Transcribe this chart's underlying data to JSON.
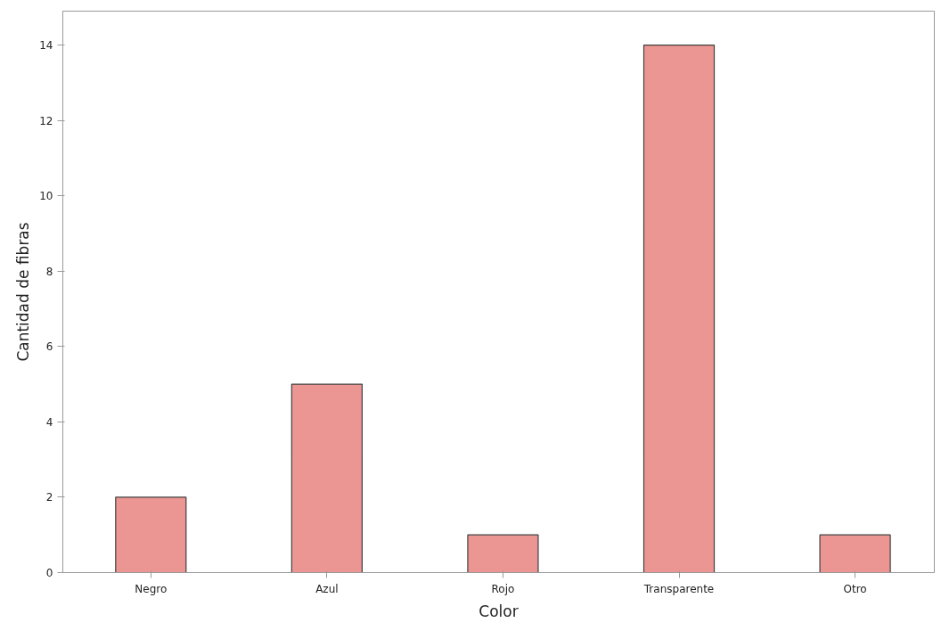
{
  "chart_data": {
    "type": "bar",
    "xlabel": "Color",
    "ylabel": "Cantidad de fibras",
    "categories": [
      "Negro",
      "Azul",
      "Rojo",
      "Transparente",
      "Otro"
    ],
    "values": [
      2,
      5,
      1,
      14,
      1
    ],
    "color": "#ec9693",
    "ylim": [
      0,
      14.9
    ],
    "yticks": [
      0,
      2,
      4,
      6,
      8,
      10,
      12,
      14
    ],
    "grid": false
  }
}
